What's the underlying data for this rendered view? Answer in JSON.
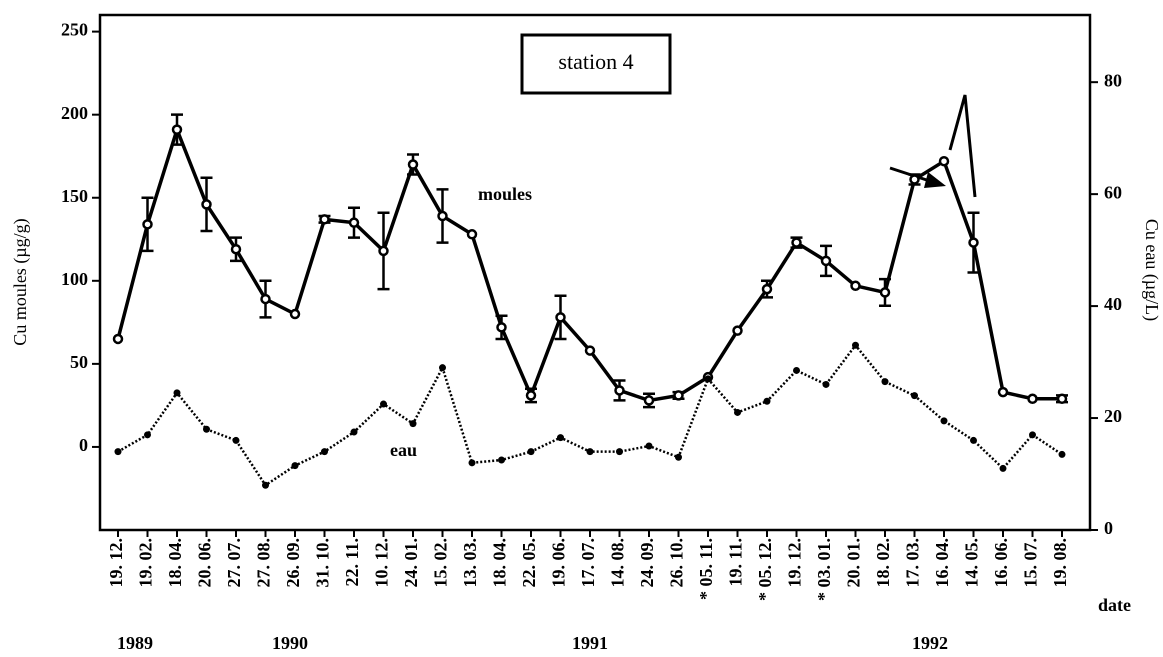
{
  "chart_data": {
    "type": "line",
    "title": "station 4",
    "y_label": "Cu moules (µg/g)",
    "y2_label": "Cu eau (µg/L)",
    "x_label": "date",
    "categories": [
      "19. 12.",
      "19. 02.",
      "18. 04.",
      "20. 06.",
      "27. 07.",
      "27. 08.",
      "26. 09.",
      "31. 10.",
      "22. 11.",
      "10. 12.",
      "24. 01.",
      "15. 02.",
      "13. 03.",
      "18. 04.",
      "22. 05.",
      "19. 06.",
      "17. 07.",
      "14. 08.",
      "24. 09.",
      "26. 10.",
      "* 05. 11.",
      "19. 11.",
      "* 05. 12.",
      "19. 12.",
      "* 03. 01.",
      "20. 01.",
      "18. 02.",
      "17. 03.",
      "16. 04.",
      "14. 05.",
      "16. 06.",
      "15. 07.",
      "19. 08."
    ],
    "years": [
      "1989",
      "1990",
      "1991",
      "1992"
    ],
    "series": [
      {
        "name": "moules",
        "color": "#000000",
        "axis": "y",
        "values": [
          65,
          134,
          191,
          146,
          119,
          89,
          80,
          137,
          135,
          118,
          170,
          139,
          128,
          72,
          31,
          78,
          58,
          34,
          28,
          31,
          42,
          70,
          95,
          123,
          112,
          97,
          93,
          161,
          172,
          123,
          33,
          29,
          29
        ],
        "errors": [
          null,
          16,
          9,
          16,
          7,
          11,
          null,
          2,
          9,
          23,
          6,
          16,
          null,
          7,
          4,
          13,
          null,
          6,
          4,
          2,
          null,
          null,
          5,
          3,
          9,
          null,
          8,
          3,
          null,
          18,
          null,
          null,
          2
        ]
      },
      {
        "name": "eau",
        "color": "#000000",
        "axis": "y2",
        "values": [
          14,
          17,
          24.5,
          18,
          16,
          8,
          11.5,
          14,
          17.5,
          22.5,
          19,
          29,
          12,
          12.5,
          14,
          16.5,
          14,
          14,
          15,
          13,
          27,
          21,
          23,
          28.5,
          26,
          33,
          26.5,
          24,
          19.5,
          16,
          11,
          17,
          13.5
        ]
      }
    ],
    "ylim": [
      -50,
      260
    ],
    "yticks": [
      0,
      50,
      100,
      150,
      200,
      250
    ],
    "y2lim": [
      0,
      92
    ],
    "y2ticks": [
      0,
      20,
      40,
      60,
      80
    ]
  }
}
